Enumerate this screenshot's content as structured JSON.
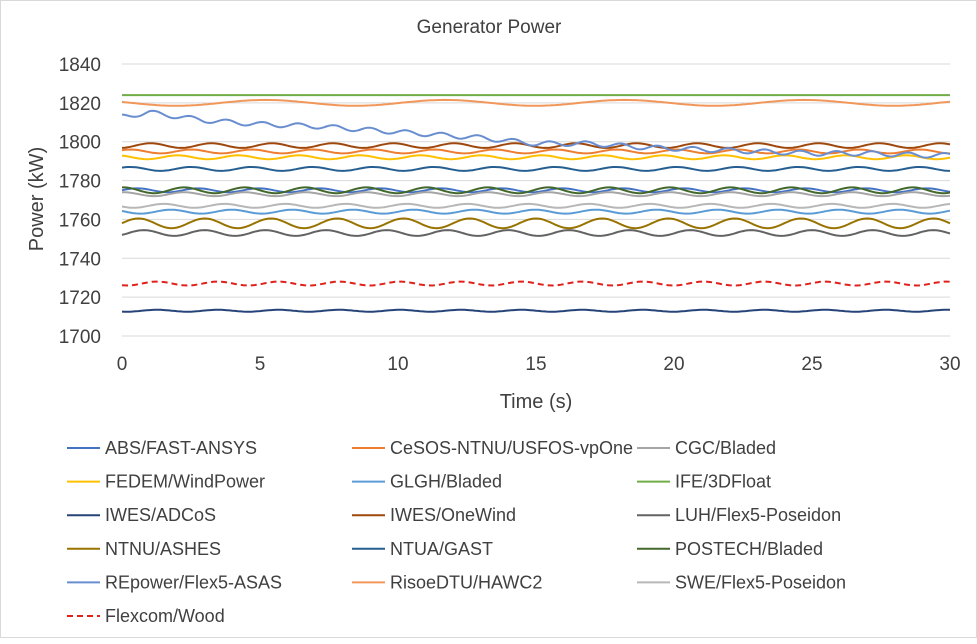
{
  "chart_data": {
    "type": "line",
    "title": "Generator Power",
    "xlabel": "Time (s)",
    "ylabel": "Power (kW)",
    "xlim": [
      0,
      30
    ],
    "ylim": [
      1700,
      1840
    ],
    "x_ticks": [
      0,
      5,
      10,
      15,
      20,
      25,
      30
    ],
    "y_ticks": [
      1700,
      1720,
      1740,
      1760,
      1780,
      1800,
      1820,
      1840
    ],
    "grid": "horizontal",
    "legend_position": "bottom",
    "series": [
      {
        "name": "ABS/FAST-ANSYS",
        "color": "#4472c4",
        "dash": "solid",
        "x": [
          0,
          30
        ],
        "y": [
          1775,
          1775
        ],
        "amp": 1.0,
        "period": 2.2
      },
      {
        "name": "CeSOS-NTNU/USFOS-vpOne",
        "color": "#ed7d31",
        "dash": "solid",
        "x": [
          0,
          30
        ],
        "y": [
          1795,
          1795
        ],
        "amp": 1.0,
        "period": 2.2
      },
      {
        "name": "CGC/Bladed",
        "color": "#a5a5a5",
        "dash": "solid",
        "x": [
          0,
          30
        ],
        "y": [
          1773,
          1773
        ],
        "amp": 1.0,
        "period": 2.2
      },
      {
        "name": "FEDEM/WindPower",
        "color": "#ffc000",
        "dash": "solid",
        "x": [
          0,
          30
        ],
        "y": [
          1792,
          1792
        ],
        "amp": 1.0,
        "period": 2.2
      },
      {
        "name": "GLGH/Bladed",
        "color": "#5b9bd5",
        "dash": "solid",
        "x": [
          0,
          30
        ],
        "y": [
          1764,
          1764
        ],
        "amp": 1.0,
        "period": 2.2
      },
      {
        "name": "IFE/3DFloat",
        "color": "#70ad47",
        "dash": "solid",
        "x": [
          0,
          30
        ],
        "y": [
          1824,
          1824
        ],
        "amp": 0,
        "period": 2.2
      },
      {
        "name": "IWES/ADCoS",
        "color": "#264478",
        "dash": "solid",
        "x": [
          0,
          30
        ],
        "y": [
          1713,
          1713
        ],
        "amp": 0.5,
        "period": 2.2
      },
      {
        "name": "IWES/OneWind",
        "color": "#9e480e",
        "dash": "solid",
        "x": [
          0,
          30
        ],
        "y": [
          1798,
          1798
        ],
        "amp": 1.2,
        "period": 2.2
      },
      {
        "name": "LUH/Flex5-Poseidon",
        "color": "#636363",
        "dash": "solid",
        "x": [
          0,
          30
        ],
        "y": [
          1753,
          1753
        ],
        "amp": 1.5,
        "period": 2.2
      },
      {
        "name": "NTNU/ASHES",
        "color": "#997300",
        "dash": "solid",
        "x": [
          0,
          30
        ],
        "y": [
          1758,
          1758
        ],
        "amp": 2.5,
        "period": 2.4
      },
      {
        "name": "NTUA/GAST",
        "color": "#255e91",
        "dash": "solid",
        "x": [
          0,
          30
        ],
        "y": [
          1786,
          1786
        ],
        "amp": 1.0,
        "period": 2.2
      },
      {
        "name": "POSTECH/Bladed",
        "color": "#43682b",
        "dash": "solid",
        "x": [
          0,
          30
        ],
        "y": [
          1775,
          1775
        ],
        "amp": 1.5,
        "period": 2.2
      },
      {
        "name": "REpower/Flex5-ASAS",
        "color": "#698ed0",
        "dash": "solid",
        "x": [
          0,
          1,
          3,
          5,
          7,
          9,
          11,
          13,
          15,
          17,
          19,
          21,
          23,
          25,
          27,
          29,
          30
        ],
        "y": [
          1813,
          1815,
          1811,
          1809,
          1808,
          1806,
          1804,
          1802,
          1799,
          1799,
          1797,
          1796,
          1795,
          1794,
          1794,
          1793,
          1793
        ],
        "amp": 1.2,
        "period": 1.3
      },
      {
        "name": "RisoeDTU/HAWC2",
        "color": "#f1975a",
        "dash": "solid",
        "x": [
          0,
          30
        ],
        "y": [
          1820,
          1820
        ],
        "amp": 1.5,
        "period": 6.5
      },
      {
        "name": "SWE/Flex5-Poseidon",
        "color": "#b7b7b7",
        "dash": "solid",
        "x": [
          0,
          30
        ],
        "y": [
          1767,
          1767
        ],
        "amp": 1.0,
        "period": 2.2
      },
      {
        "name": "Flexcom/Wood",
        "color": "#e0201b",
        "dash": "dashed",
        "x": [
          0,
          30
        ],
        "y": [
          1727,
          1727
        ],
        "amp": 1.0,
        "period": 2.2
      }
    ]
  }
}
